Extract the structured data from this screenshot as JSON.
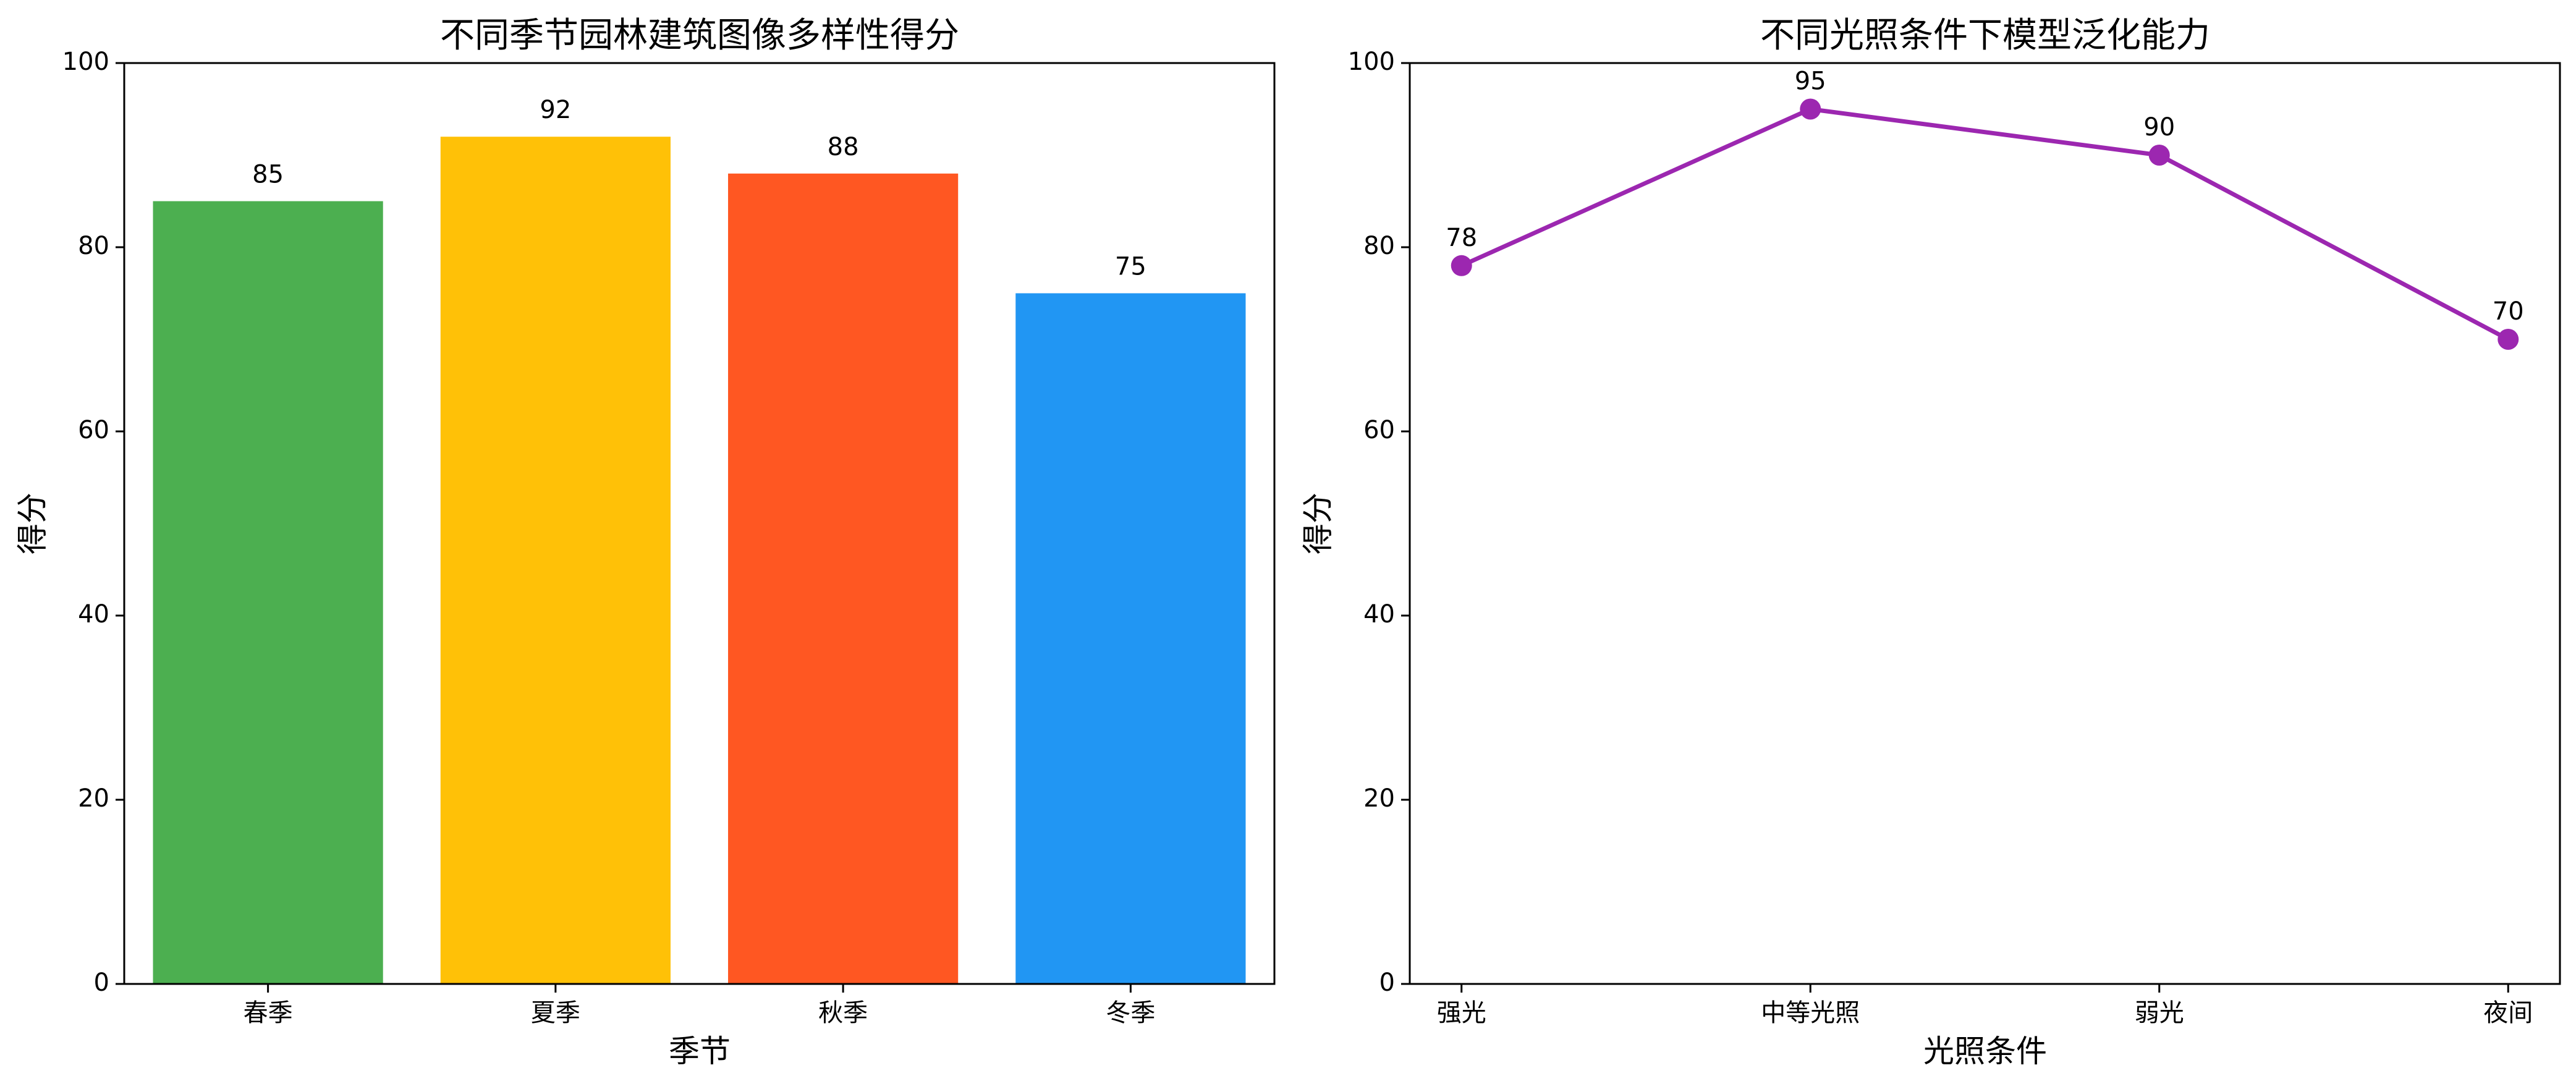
{
  "chart_data": [
    {
      "type": "bar",
      "title": "不同季节园林建筑图像多样性得分",
      "xlabel": "季节",
      "ylabel": "得分",
      "categories": [
        "春季",
        "夏季",
        "秋季",
        "冬季"
      ],
      "values": [
        85,
        92,
        88,
        75
      ],
      "colors": [
        "#4caf50",
        "#ffc107",
        "#ff5722",
        "#2196f3"
      ],
      "ylim": [
        0,
        100
      ],
      "yticks": [
        0,
        20,
        40,
        60,
        80,
        100
      ],
      "grid": false
    },
    {
      "type": "line",
      "title": "不同光照条件下模型泛化能力",
      "xlabel": "光照条件",
      "ylabel": "得分",
      "categories": [
        "强光",
        "中等光照",
        "弱光",
        "夜间"
      ],
      "values": [
        78,
        95,
        90,
        70
      ],
      "color": "#9c27b0",
      "marker": "circle",
      "ylim": [
        0,
        100
      ],
      "yticks": [
        0,
        20,
        40,
        60,
        80,
        100
      ],
      "grid": false
    }
  ]
}
